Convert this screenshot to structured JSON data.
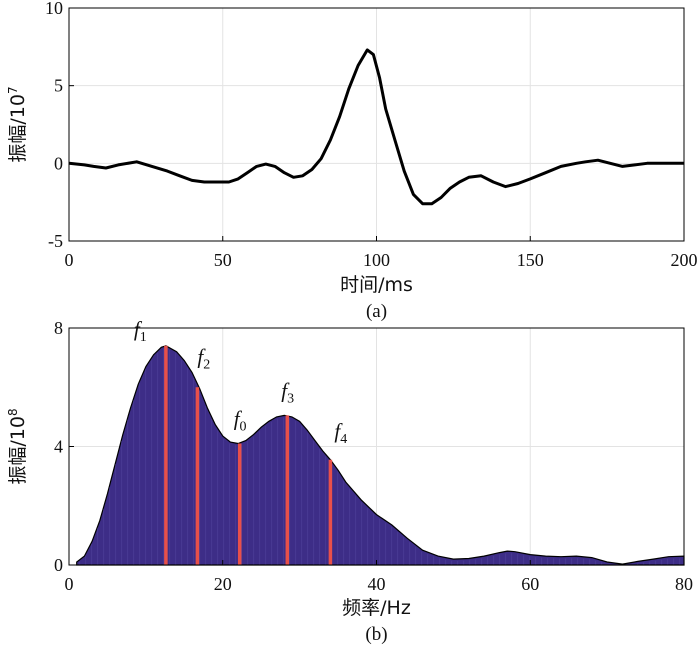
{
  "chart_data": [
    {
      "type": "line",
      "caption": "(a)",
      "xlabel": "时间/ms",
      "ylabel": "振幅/10",
      "ylabel_exp": "7",
      "xlim": [
        0,
        200
      ],
      "ylim": [
        -5,
        10
      ],
      "xticks": [
        "0",
        "50",
        "100",
        "150",
        "200"
      ],
      "yticks": [
        "-5",
        "0",
        "5",
        "10"
      ],
      "grid": true,
      "color": "#000000",
      "series": [
        {
          "x": [
            0,
            5,
            8,
            12,
            16,
            22,
            27,
            32,
            36,
            40,
            44,
            48,
            52,
            55,
            58,
            61,
            64,
            67,
            70,
            73,
            76,
            79,
            82,
            85,
            88,
            91,
            94,
            97,
            99,
            101,
            103,
            106,
            109,
            112,
            115,
            118,
            121,
            124,
            127,
            130,
            134,
            138,
            142,
            146,
            150,
            155,
            160,
            165,
            168,
            172,
            176,
            180,
            184,
            188,
            192,
            196,
            200
          ],
          "y": [
            0,
            -0.1,
            -0.2,
            -0.3,
            -0.1,
            0.1,
            -0.2,
            -0.5,
            -0.8,
            -1.1,
            -1.2,
            -1.2,
            -1.2,
            -1.0,
            -0.6,
            -0.2,
            -0.05,
            -0.2,
            -0.6,
            -0.9,
            -0.8,
            -0.4,
            0.3,
            1.5,
            3.0,
            4.8,
            6.3,
            7.3,
            7.0,
            5.5,
            3.5,
            1.5,
            -0.5,
            -2.0,
            -2.6,
            -2.6,
            -2.2,
            -1.6,
            -1.2,
            -0.9,
            -0.8,
            -1.2,
            -1.5,
            -1.3,
            -1.0,
            -0.6,
            -0.2,
            0.0,
            0.1,
            0.2,
            0.0,
            -0.2,
            -0.1,
            0.0,
            0.0,
            0.0,
            0.0
          ]
        }
      ]
    },
    {
      "type": "area",
      "caption": "(b)",
      "xlabel": "频率/Hz",
      "ylabel": "振幅/10",
      "ylabel_exp": "8",
      "xlim": [
        0,
        80
      ],
      "ylim": [
        0,
        8
      ],
      "xticks": [
        "0",
        "20",
        "40",
        "60",
        "80"
      ],
      "yticks": [
        "0",
        "4",
        "8"
      ],
      "grid": true,
      "fill_color": "#3d2d87",
      "marker_color": "#e8504a",
      "series": [
        {
          "x": [
            1,
            2,
            3,
            4,
            5,
            6,
            7,
            8,
            9,
            10,
            11,
            12,
            12.6,
            14,
            15,
            16,
            17,
            18,
            19,
            20,
            21,
            22,
            23,
            24,
            25,
            26,
            27,
            28,
            29,
            30,
            31,
            32,
            33,
            34,
            35,
            36,
            38,
            40,
            42,
            44,
            46,
            48,
            50,
            52,
            54,
            56,
            57,
            58,
            60,
            62,
            64,
            66,
            68,
            70,
            72,
            74,
            76,
            78,
            80
          ],
          "y": [
            0.1,
            0.3,
            0.8,
            1.5,
            2.4,
            3.4,
            4.4,
            5.3,
            6.1,
            6.7,
            7.1,
            7.35,
            7.4,
            7.2,
            6.9,
            6.5,
            5.95,
            5.3,
            4.75,
            4.35,
            4.15,
            4.1,
            4.2,
            4.4,
            4.65,
            4.85,
            5.0,
            5.05,
            5.0,
            4.85,
            4.55,
            4.2,
            3.85,
            3.55,
            3.2,
            2.8,
            2.2,
            1.7,
            1.35,
            0.9,
            0.5,
            0.3,
            0.2,
            0.22,
            0.3,
            0.42,
            0.47,
            0.45,
            0.35,
            0.3,
            0.28,
            0.3,
            0.25,
            0.1,
            0.03,
            0.12,
            0.2,
            0.28,
            0.3
          ]
        }
      ],
      "annotations": [
        {
          "label": "f",
          "sub": "1",
          "x": 12.6,
          "y": 7.4
        },
        {
          "label": "f",
          "sub": "2",
          "x": 16.7,
          "y": 6.0
        },
        {
          "label": "f",
          "sub": "0",
          "x": 22.2,
          "y": 4.1
        },
        {
          "label": "f",
          "sub": "3",
          "x": 28.4,
          "y": 5.05
        },
        {
          "label": "f",
          "sub": "4",
          "x": 34.0,
          "y": 3.55
        }
      ]
    }
  ]
}
